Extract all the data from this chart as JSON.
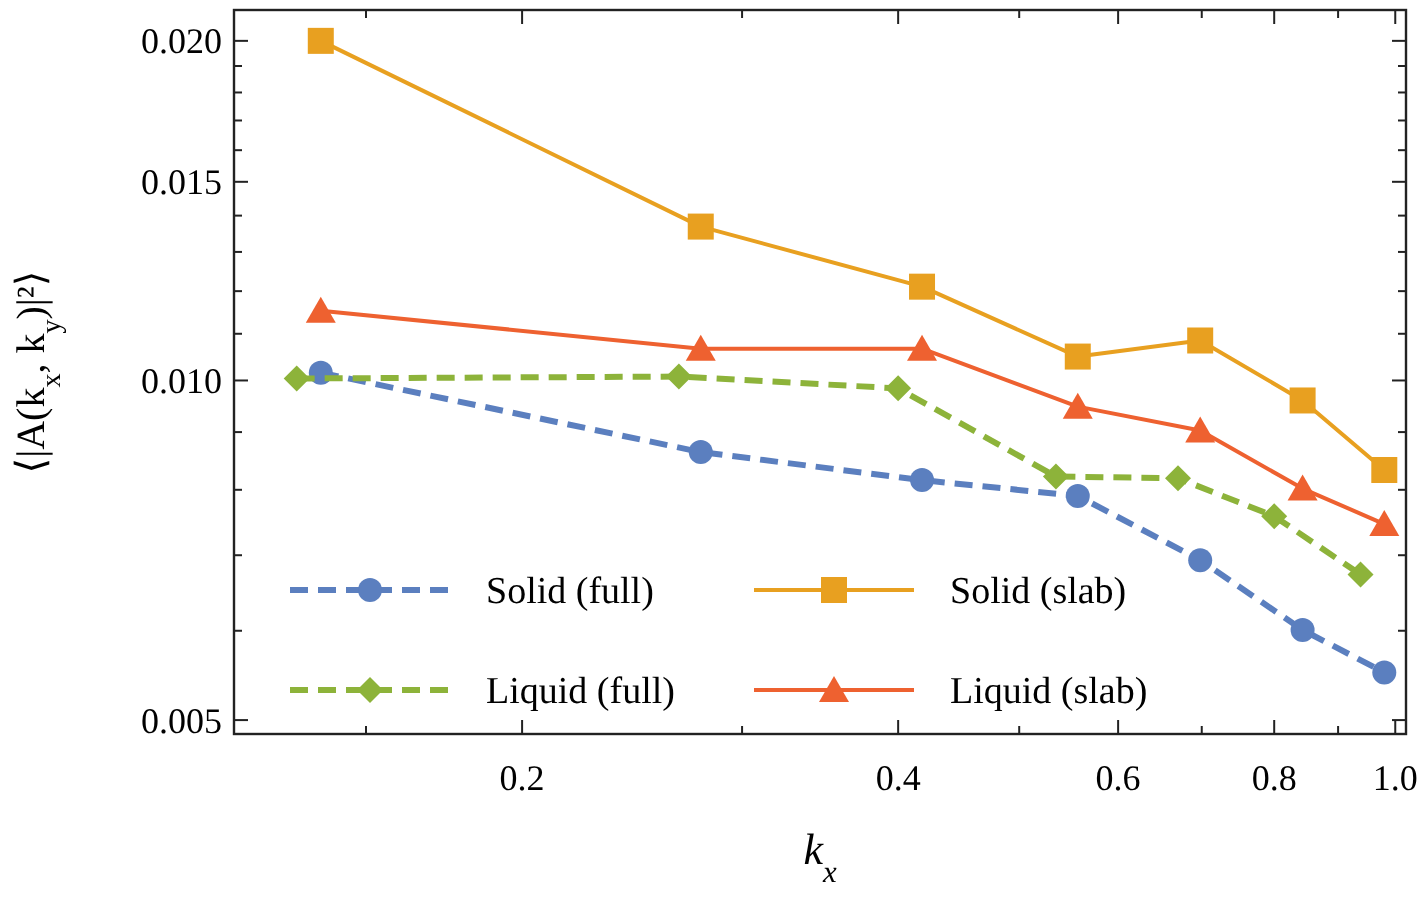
{
  "chart_data": {
    "type": "line",
    "xlabel": "k$_{x}$",
    "ylabel": "⟨|A(k$_{x}$, k$_{y}$)|²⟩",
    "log": "xy",
    "grid": false,
    "legend": "bottom left",
    "xlim": [
      0.1176,
      1.02
    ],
    "ylim": [
      0.00486,
      0.0213
    ],
    "xticks": [
      {
        "value": 0.15,
        "label": null
      },
      0.2,
      {
        "value": 0.3,
        "label": null
      },
      0.4,
      {
        "value": 0.5,
        "label": null
      },
      0.6,
      {
        "value": 0.7,
        "label": null
      },
      0.8,
      {
        "value": 0.9,
        "label": null
      },
      {
        "value": 1.0,
        "label": "1.0"
      }
    ],
    "yticks": [
      0.005,
      {
        "value": 0.006,
        "label": null
      },
      {
        "value": 0.007,
        "label": null
      },
      {
        "value": 0.008,
        "label": null
      },
      {
        "value": 0.009,
        "label": null
      },
      {
        "value": 0.01,
        "label": "0.010"
      },
      {
        "value": 0.011,
        "label": null
      },
      {
        "value": 0.012,
        "label": null
      },
      {
        "value": 0.013,
        "label": null
      },
      {
        "value": 0.014,
        "label": null
      },
      0.015,
      {
        "value": 0.016,
        "label": null
      },
      {
        "value": 0.017,
        "label": null
      },
      {
        "value": 0.018,
        "label": null
      },
      {
        "value": 0.019,
        "label": null
      },
      {
        "value": 0.02,
        "label": "0.020"
      }
    ],
    "series": [
      {
        "name": "Solid (full)",
        "color": "#5b7fbf",
        "marker": "circle",
        "line_style": "dashed",
        "x": [
          0.138,
          0.278,
          0.418,
          0.557,
          0.698,
          0.843,
          0.98
        ],
        "values": [
          0.01016,
          0.00864,
          0.00816,
          0.0079,
          0.00693,
          0.00601,
          0.00551
        ]
      },
      {
        "name": "Solid (slab)",
        "color": "#e8a020",
        "marker": "square",
        "line_style": "solid",
        "x": [
          0.138,
          0.278,
          0.418,
          0.557,
          0.698,
          0.843,
          0.98
        ],
        "values": [
          0.02,
          0.01369,
          0.01211,
          0.0105,
          0.01085,
          0.0096,
          0.00833
        ]
      },
      {
        "name": "Liquid (full)",
        "color": "#8db33a",
        "marker": "diamond",
        "line_style": "dashed",
        "x": [
          0.132,
          0.267,
          0.4,
          0.535,
          0.67,
          0.8,
          0.938
        ],
        "values": [
          0.01004,
          0.01008,
          0.00984,
          0.00822,
          0.00819,
          0.00758,
          0.00673
        ]
      },
      {
        "name": "Liquid (slab)",
        "color": "#ee6130",
        "marker": "triangle",
        "line_style": "solid",
        "x": [
          0.138,
          0.278,
          0.418,
          0.557,
          0.698,
          0.843,
          0.98
        ],
        "values": [
          0.01153,
          0.01067,
          0.01067,
          0.00948,
          0.00903,
          0.00802,
          0.00746
        ]
      }
    ]
  }
}
